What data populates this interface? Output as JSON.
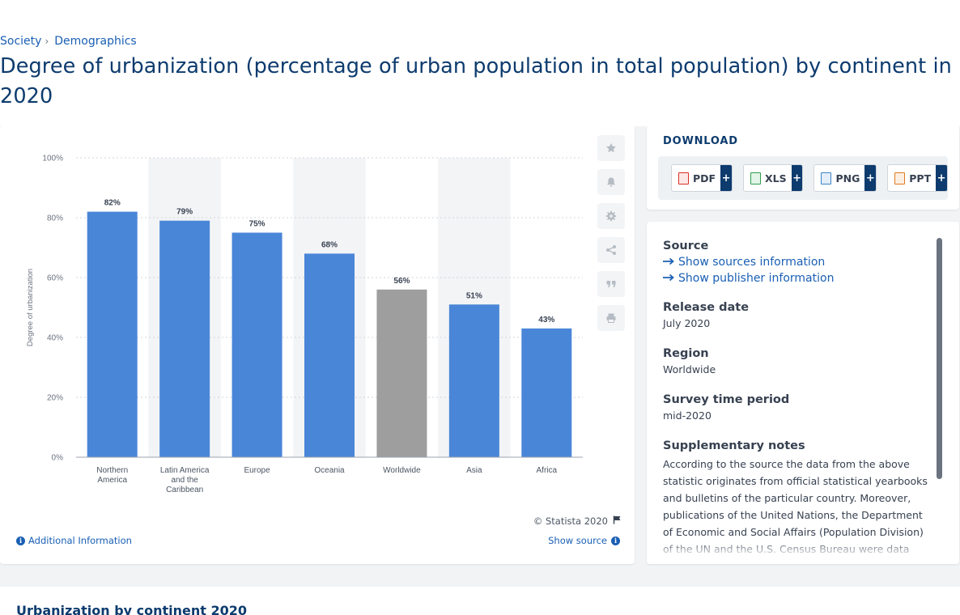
{
  "breadcrumb": {
    "items": [
      "Society",
      "Demographics"
    ]
  },
  "page_title": "Degree of urbanization (percentage of urban population in total population) by continent in 2020",
  "chart_data": {
    "type": "bar",
    "categories": [
      "Northern America",
      "Latin America and the Caribbean",
      "Europe",
      "Oceania",
      "Worldwide",
      "Asia",
      "Africa"
    ],
    "category_lines": [
      [
        "Northern",
        "America"
      ],
      [
        "Latin America",
        "and the",
        "Caribbean"
      ],
      [
        "Europe"
      ],
      [
        "Oceania"
      ],
      [
        "Worldwide"
      ],
      [
        "Asia"
      ],
      [
        "Africa"
      ]
    ],
    "values": [
      82,
      79,
      75,
      68,
      56,
      51,
      43
    ],
    "value_labels": [
      "82%",
      "79%",
      "75%",
      "68%",
      "56%",
      "51%",
      "43%"
    ],
    "highlight_category": "Worldwide",
    "title": "",
    "xlabel": "",
    "ylabel": "Degree of urbanization",
    "ylim": [
      0,
      100
    ],
    "yticks": [
      "0%",
      "20%",
      "40%",
      "60%",
      "80%",
      "100%"
    ],
    "grid": true,
    "colors": {
      "bar": "#4a86d8",
      "highlight": "#9e9e9e",
      "band": "#f3f4f6"
    }
  },
  "chart_footer": {
    "copyright": "© Statista 2020",
    "additional_info": "Additional Information",
    "show_source": "Show source"
  },
  "side_icons": [
    "star-icon",
    "bell-icon",
    "gear-icon",
    "share-icon",
    "quote-icon",
    "print-icon"
  ],
  "download": {
    "title": "DOWNLOAD",
    "buttons": [
      {
        "label": "PDF",
        "plus": "+",
        "color": "#d93025"
      },
      {
        "label": "XLS",
        "plus": "+",
        "color": "#2e9e4f"
      },
      {
        "label": "PNG",
        "plus": "+",
        "color": "#3b82c4"
      },
      {
        "label": "PPT",
        "plus": "+",
        "color": "#e07a1f"
      }
    ]
  },
  "details": {
    "source_label": "Source",
    "show_sources": "Show sources information",
    "show_publisher": "Show publisher information",
    "release_label": "Release date",
    "release_value": "July 2020",
    "region_label": "Region",
    "region_value": "Worldwide",
    "survey_label": "Survey time period",
    "survey_value": "mid-2020",
    "notes_label": "Supplementary notes",
    "notes_text": "According to the source the data from the above statistic originates from official statistical yearbooks and bulletins of the particular country. Moreover, publications of the United Nations, the Department of Economic and Social Affairs (Population Division) of the UN and the U.S. Census Bureau were data"
  },
  "related": {
    "title": "Urbanization by continent 2020"
  }
}
